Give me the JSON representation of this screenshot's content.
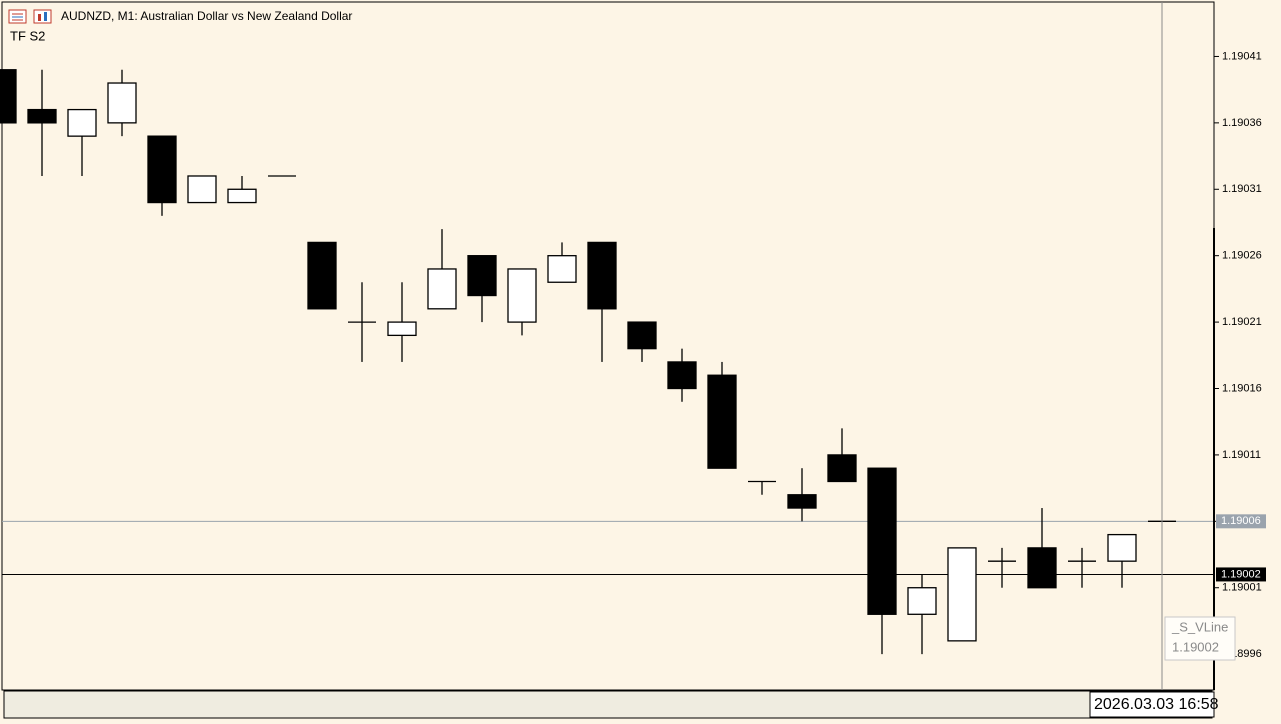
{
  "chart_data": {
    "type": "candlestick",
    "title": "AUDNZD, M1:  Australian Dollar vs New Zealand Dollar",
    "subtitle": "TF S2",
    "open": [
      1.1904,
      1.19037,
      1.19035,
      1.19036,
      1.19035,
      1.1903,
      1.1903,
      1.19032,
      1.19027,
      1.19021,
      1.1902,
      1.19022,
      1.19026,
      1.19021,
      1.19024,
      1.19027,
      1.19021,
      1.19018,
      1.19017,
      1.19009,
      1.19008,
      1.19011,
      1.1901,
      1.18999,
      1.18997,
      1.19003,
      1.19004,
      1.19003,
      1.19003,
      1.19006
    ],
    "high": [
      1.1904,
      1.1904,
      1.19037,
      1.1904,
      1.19035,
      1.19032,
      1.19032,
      1.19032,
      1.19027,
      1.19024,
      1.19024,
      1.19028,
      1.19026,
      1.19025,
      1.19027,
      1.19027,
      1.19021,
      1.19019,
      1.19018,
      1.19009,
      1.1901,
      1.19013,
      1.1901,
      1.19002,
      1.19004,
      1.19004,
      1.19007,
      1.19004,
      1.19005,
      1.19006
    ],
    "low": [
      1.19036,
      1.19032,
      1.19032,
      1.19035,
      1.19029,
      1.1903,
      1.1903,
      1.19032,
      1.19022,
      1.19018,
      1.19018,
      1.19022,
      1.19021,
      1.1902,
      1.19024,
      1.19018,
      1.19018,
      1.19015,
      1.1901,
      1.19008,
      1.19006,
      1.19009,
      1.18996,
      1.18996,
      1.18997,
      1.19001,
      1.19001,
      1.19001,
      1.19001,
      1.19006
    ],
    "close": [
      1.19036,
      1.19036,
      1.19037,
      1.19039,
      1.1903,
      1.19032,
      1.19031,
      1.19032,
      1.19022,
      1.19021,
      1.19021,
      1.19025,
      1.19023,
      1.19025,
      1.19026,
      1.19022,
      1.19019,
      1.19016,
      1.1901,
      1.19009,
      1.19007,
      1.19009,
      1.18999,
      1.19001,
      1.19004,
      1.19003,
      1.19001,
      1.19003,
      1.19005,
      1.19006
    ],
    "up_color": "#ffffff",
    "down_color": "#000000",
    "ylim": [
      1.189933,
      1.190451
    ],
    "yticks": [
      1.19041,
      1.19036,
      1.19031,
      1.19026,
      1.19021,
      1.19016,
      1.19011,
      1.19006,
      1.19001,
      1.18996
    ],
    "price_lines": [
      {
        "value": 1.19006,
        "color": "#9aa3ad"
      },
      {
        "value": 1.19002,
        "color": "#000000"
      }
    ],
    "tooltip": {
      "name": "_S_VLine",
      "value": 1.19002
    },
    "time_label": "2026.03.03 16:58"
  }
}
